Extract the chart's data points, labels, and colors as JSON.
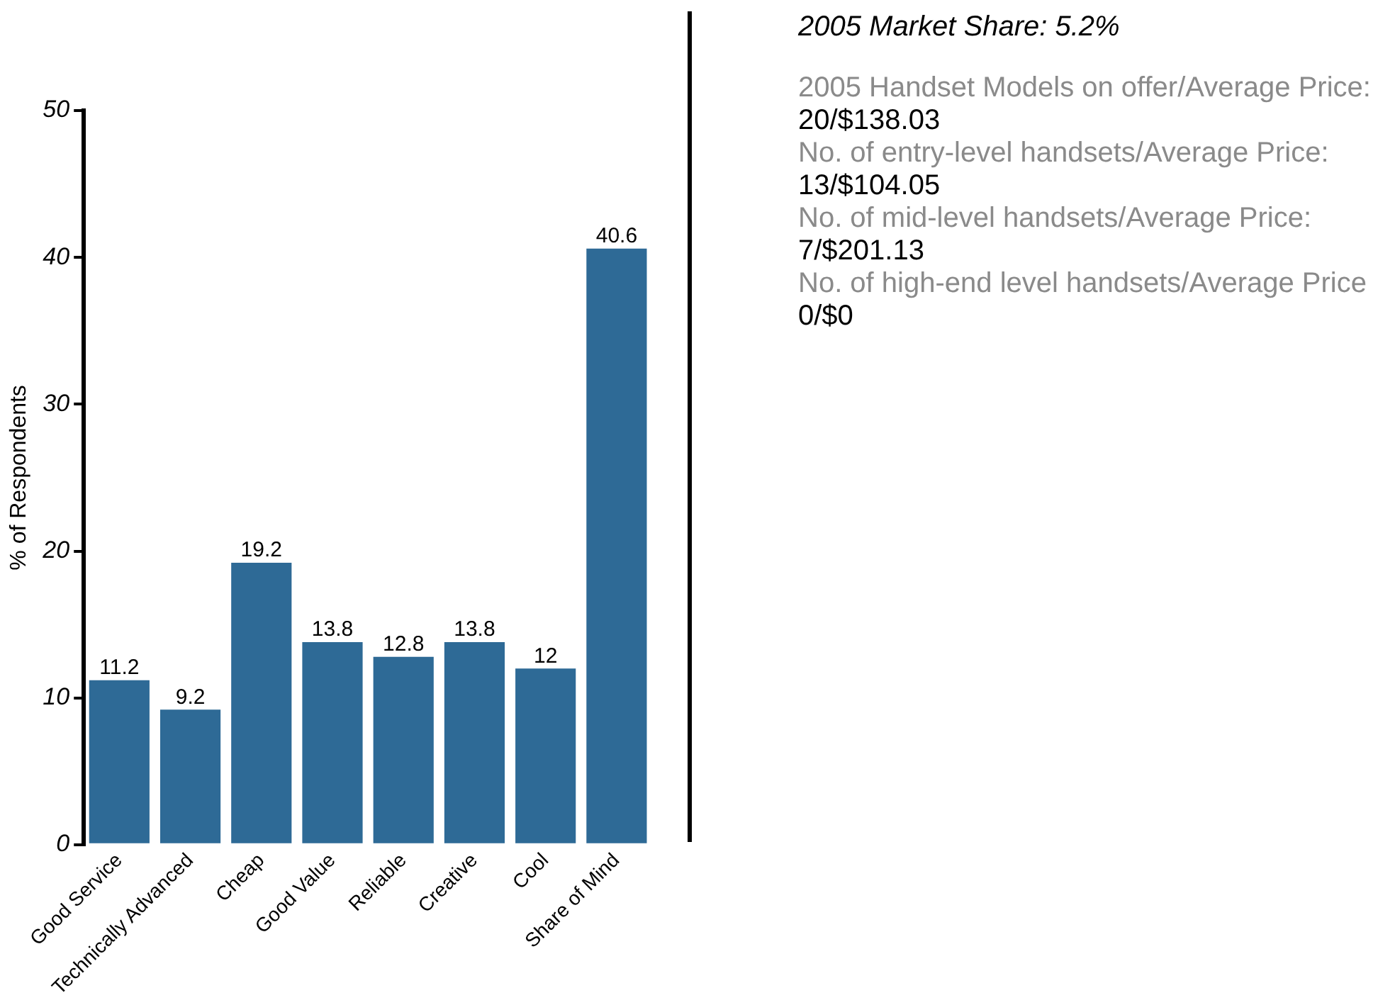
{
  "chart_data": {
    "type": "bar",
    "title": "2005 Market Share: 5.2%",
    "ylabel": "% of Respondents",
    "categories": [
      "Good Service",
      "Technically Advanced",
      "Cheap",
      "Good Value",
      "Reliable",
      "Creative",
      "Cool",
      "Share of Mind"
    ],
    "values": [
      11.2,
      9.2,
      19.2,
      13.8,
      12.8,
      13.8,
      12,
      40.6
    ],
    "color": "#2e6a96",
    "ylim": [
      0,
      50
    ],
    "yticks": [
      0,
      10,
      20,
      30,
      40,
      50
    ],
    "grid": false,
    "legend": false,
    "data_labels": true,
    "annotations": [
      "2005 Handset Models on offer/Average Price:",
      "20/$138.03",
      "No. of entry-level handsets/Average Price:",
      "13/$104.05",
      "No. of mid-level handsets/Average Price:",
      "7/$201.13",
      "No. of high-end level handsets/Average Price",
      "0/$0"
    ]
  }
}
